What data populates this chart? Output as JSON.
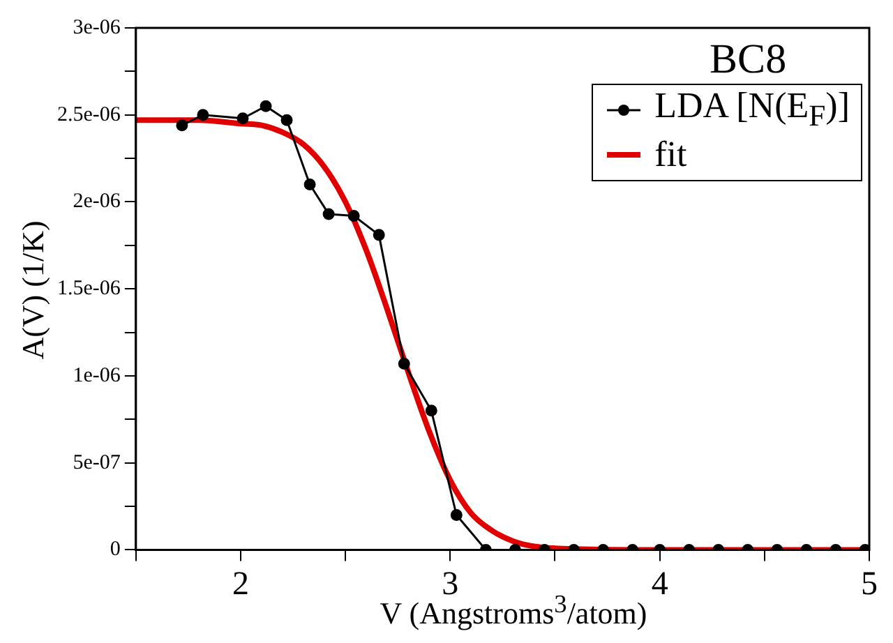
{
  "chart_data": {
    "type": "line",
    "xlabel": "V (Angstroms$^{3}$/atom)",
    "ylabel": "A(V) (1/K)",
    "legend_title": "BC8",
    "legend": "top right",
    "grid": false,
    "xlim": [
      1.5,
      5
    ],
    "xticks": [
      {
        "value": 1.5,
        "label": null
      },
      2,
      {
        "value": 2.5,
        "label": null
      },
      3,
      {
        "value": 3.5,
        "label": null
      },
      4,
      {
        "value": 4.5,
        "label": null
      },
      5
    ],
    "ylim": [
      0,
      3e-06
    ],
    "yticks": [
      0,
      {
        "value": 2.5e-07,
        "label": null
      },
      {
        "value": 5e-07,
        "label": "5e-07"
      },
      {
        "value": 7.5e-07,
        "label": null
      },
      {
        "value": 1e-06,
        "label": "1e-06"
      },
      {
        "value": 1.25e-06,
        "label": null
      },
      {
        "value": 1.5e-06,
        "label": "1.5e-06"
      },
      {
        "value": 1.75e-06,
        "label": null
      },
      {
        "value": 2e-06,
        "label": "2e-06"
      },
      {
        "value": 2.25e-06,
        "label": null
      },
      {
        "value": 2.5e-06,
        "label": "2.5e-06"
      },
      {
        "value": 2.75e-06,
        "label": null
      },
      {
        "value": 3e-06,
        "label": "3e-06"
      }
    ],
    "series": [
      {
        "name": "LDA [N(E$_{F}$)]",
        "color": "#000000",
        "marker": "circle",
        "x": [
          1.72,
          1.82,
          2.01,
          2.12,
          2.22,
          2.33,
          2.42,
          2.54,
          2.66,
          2.78,
          2.91,
          3.03,
          3.17,
          3.31,
          3.45,
          3.59,
          3.73,
          3.87,
          4.0,
          4.14,
          4.28,
          4.42,
          4.56,
          4.7,
          4.84,
          4.98
        ],
        "values": [
          2.44e-06,
          2.5e-06,
          2.48e-06,
          2.55e-06,
          2.47e-06,
          2.1e-06,
          1.93e-06,
          1.92e-06,
          1.81e-06,
          1.07e-06,
          8e-07,
          2e-07,
          0,
          0,
          0,
          0,
          0,
          0,
          0,
          0,
          0,
          0,
          0,
          0,
          0,
          0
        ]
      },
      {
        "name": "fit",
        "color": "#e00000",
        "marker": "none",
        "x": [
          1.5,
          1.8,
          2.0,
          2.1,
          2.2,
          2.3,
          2.4,
          2.5,
          2.6,
          2.7,
          2.8,
          2.9,
          3.0,
          3.1,
          3.2,
          3.3,
          3.4,
          3.6,
          4.0,
          5.0
        ],
        "values": [
          2.47e-06,
          2.47e-06,
          2.45e-06,
          2.44e-06,
          2.4e-06,
          2.33e-06,
          2.2e-06,
          2e-06,
          1.72e-06,
          1.38e-06,
          1.02e-06,
          6.8e-07,
          4e-07,
          2.1e-07,
          1.1e-07,
          5e-08,
          2e-08,
          5e-09,
          0,
          0
        ]
      }
    ]
  }
}
